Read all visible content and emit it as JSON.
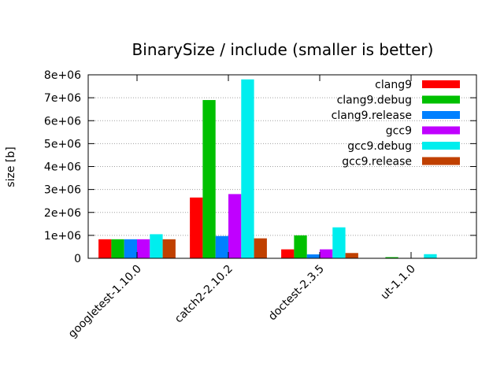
{
  "chart_data": {
    "type": "bar",
    "title": "BinarySize / include (smaller is better)",
    "xlabel": "",
    "ylabel": "size [b]",
    "ylim": [
      0,
      8000000
    ],
    "yticks": [
      0,
      1000000,
      2000000,
      3000000,
      4000000,
      5000000,
      6000000,
      7000000,
      8000000
    ],
    "ytick_labels": [
      "0",
      "1e+06",
      "2e+06",
      "3e+06",
      "4e+06",
      "5e+06",
      "6e+06",
      "7e+06",
      "8e+06"
    ],
    "grid": true,
    "legend_position": "top-right",
    "categories": [
      "googletest-1.10.0",
      "catch2-2.10.2",
      "doctest-2.3.5",
      "ut-1.1.0"
    ],
    "series": [
      {
        "name": "clang9",
        "color": "#ff0000",
        "values": [
          830000,
          2650000,
          390000,
          0
        ]
      },
      {
        "name": "clang9.debug",
        "color": "#00c000",
        "values": [
          830000,
          6900000,
          1000000,
          50000
        ]
      },
      {
        "name": "clang9.release",
        "color": "#0080ff",
        "values": [
          830000,
          970000,
          170000,
          0
        ]
      },
      {
        "name": "gcc9",
        "color": "#c000ff",
        "values": [
          830000,
          2800000,
          390000,
          0
        ]
      },
      {
        "name": "gcc9.debug",
        "color": "#00eeee",
        "values": [
          1050000,
          7800000,
          1350000,
          180000
        ]
      },
      {
        "name": "gcc9.release",
        "color": "#c04000",
        "values": [
          830000,
          870000,
          230000,
          0
        ]
      }
    ]
  }
}
